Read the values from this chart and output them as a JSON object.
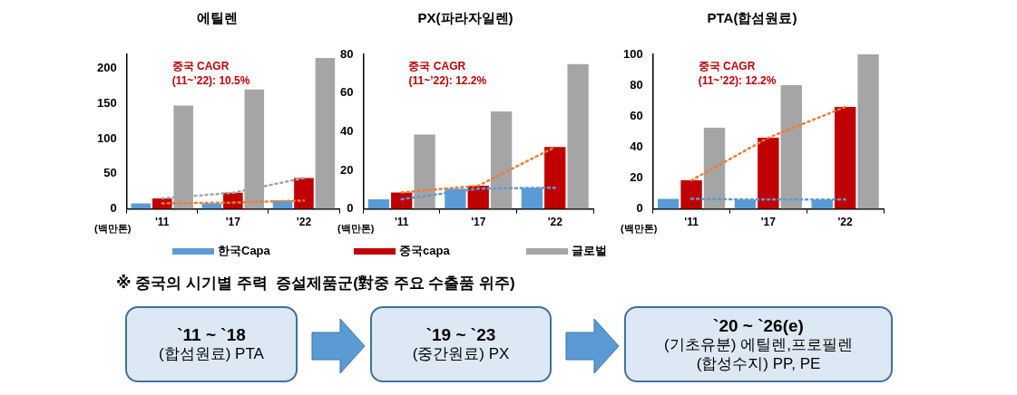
{
  "chart_data": [
    {
      "type": "bar",
      "title": "에틸렌",
      "ylabel": "(백만톤)",
      "categories": [
        "'11",
        "'17",
        "'22"
      ],
      "ylim": [
        0,
        220
      ],
      "yticks": [
        0,
        50,
        100,
        150,
        200
      ],
      "grid": false,
      "legend": "bottom",
      "annotations": [
        "중국 CAGR\n(11~’22): 10.5%"
      ],
      "series": [
        {
          "name": "한국Capa",
          "color": "#5b9bd5",
          "values": [
            8,
            8,
            12
          ]
        },
        {
          "name": "중국capa",
          "color": "#c00000",
          "values": [
            15,
            23,
            44
          ]
        },
        {
          "name": "글로벌",
          "color": "#a5a5a5",
          "values": [
            147,
            170,
            215
          ]
        },
        {
          "type": "line",
          "line_style": "dotted",
          "color": "#a5a5a5",
          "values": [
            15,
            23,
            44
          ]
        },
        {
          "type": "line",
          "line_style": "dotted",
          "color": "#ed7d31",
          "values": [
            8,
            9,
            12
          ]
        }
      ]
    },
    {
      "type": "bar",
      "title": "PX(파라자일렌)",
      "ylabel": "(백만톤)",
      "categories": [
        "'11",
        "'17",
        "'22"
      ],
      "ylim": [
        0,
        80
      ],
      "yticks": [
        0,
        20,
        40,
        60,
        80
      ],
      "grid": false,
      "annotations": [
        "중국 CAGR\n(11~’22): 12.2%"
      ],
      "series": [
        {
          "color": "#5b9bd5",
          "values": [
            5,
            10.5,
            11
          ]
        },
        {
          "color": "#c00000",
          "values": [
            8.5,
            12,
            32
          ]
        },
        {
          "color": "#a5a5a5",
          "values": [
            38.5,
            50.5,
            75
          ]
        },
        {
          "type": "line",
          "line_style": "dotted",
          "color": "#ed7d31",
          "values": [
            8.5,
            12,
            32
          ]
        },
        {
          "type": "line",
          "line_style": "dotted",
          "color": "#5b9bd5",
          "values": [
            5,
            10.5,
            11
          ]
        }
      ]
    },
    {
      "type": "bar",
      "title": "PTA(합섬원료)",
      "ylabel": "(백만톤)",
      "categories": [
        "'11",
        "'17",
        "'22"
      ],
      "ylim": [
        0,
        100
      ],
      "yticks": [
        0,
        20,
        40,
        60,
        80,
        100
      ],
      "grid": false,
      "annotations": [
        "중국 CAGR\n(11~’22): 12.2%"
      ],
      "series": [
        {
          "color": "#5b9bd5",
          "values": [
            6.5,
            6,
            6
          ]
        },
        {
          "color": "#c00000",
          "values": [
            18.5,
            46,
            66
          ]
        },
        {
          "color": "#a5a5a5",
          "values": [
            52.5,
            80,
            100
          ]
        },
        {
          "type": "line",
          "line_style": "dotted",
          "color": "#ed7d31",
          "values": [
            18.5,
            46,
            66
          ]
        },
        {
          "type": "line",
          "line_style": "dotted",
          "color": "#5b9bd5",
          "values": [
            6.5,
            6,
            6
          ]
        }
      ]
    },
    {
      "type": "other",
      "title": "※ 중국의 시기별 주력  증설제품군(對중 주요 수출품 위주)",
      "annotations": [
        "`11 ~ `18\n(합섬원료) PTA",
        "`19 ~ `23\n(중간원료) PX",
        "`20 ~ `26(e)\n(기초유분) 에틸렌,프로필렌\n(합성수지) PP, PE"
      ]
    }
  ]
}
